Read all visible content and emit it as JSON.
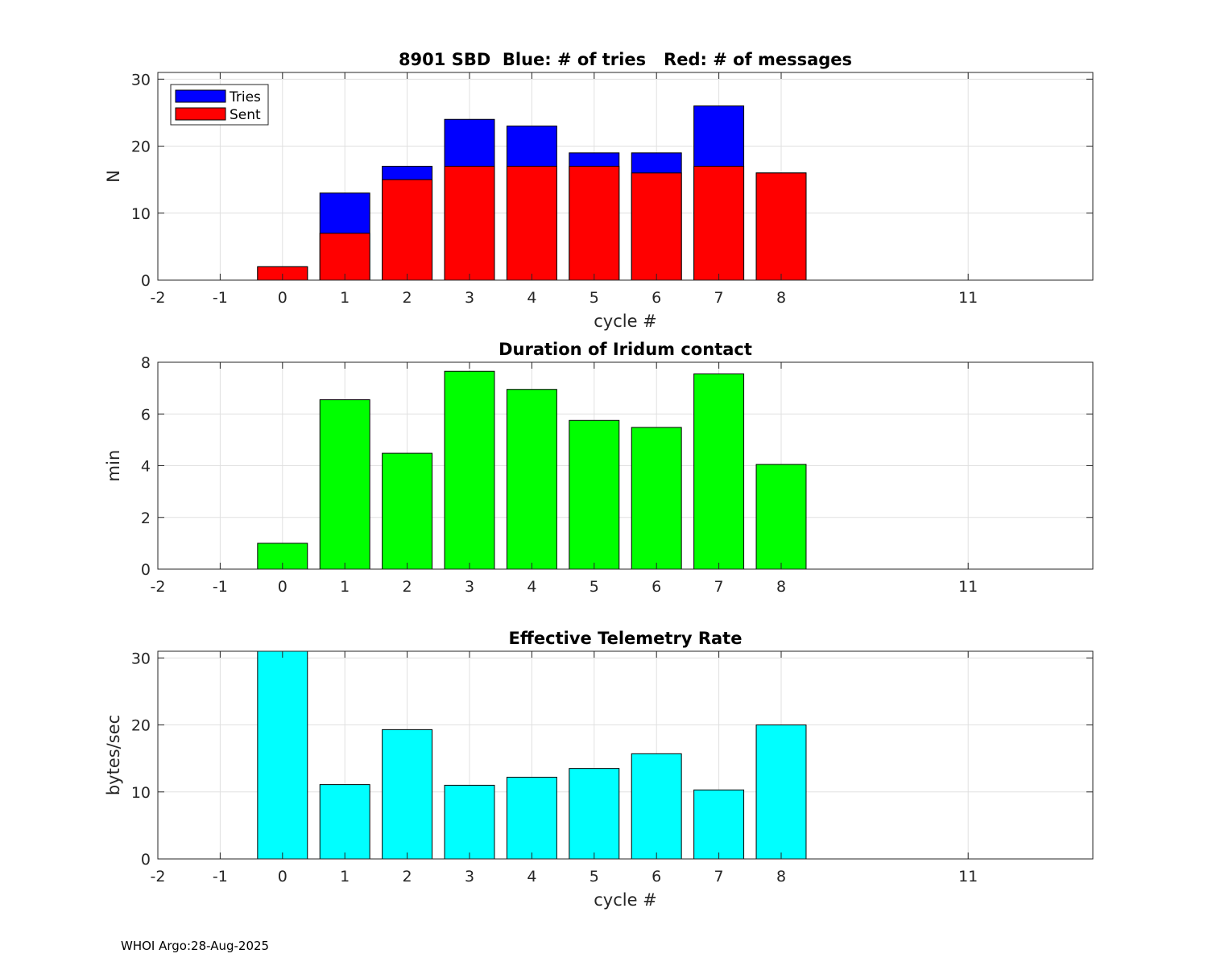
{
  "figure": {
    "footer": "WHOI Argo:28-Aug-2025",
    "colors": {
      "tries": "#0000ff",
      "sent": "#ff0000",
      "duration": "#00ff00",
      "rate": "#00ffff",
      "grid": "#e0e0e0",
      "axis": "#262626"
    }
  },
  "chart_data": [
    {
      "type": "bar",
      "title": "8901 SBD  Blue: # of tries   Red: # of messages",
      "xlabel": "cycle #",
      "ylabel": "N",
      "xlim": [
        -2,
        13
      ],
      "ylim": [
        0,
        31
      ],
      "xticks": [
        -2,
        -1,
        0,
        1,
        2,
        3,
        4,
        5,
        6,
        7,
        8,
        11
      ],
      "yticks": [
        0,
        10,
        20,
        30
      ],
      "grid": true,
      "legend": {
        "position": "top-left",
        "entries": [
          "Tries",
          "Sent"
        ]
      },
      "categories": [
        0,
        1,
        2,
        3,
        4,
        5,
        6,
        7,
        8
      ],
      "series": [
        {
          "name": "Tries",
          "values": [
            2,
            13,
            17,
            24,
            23,
            19,
            19,
            26,
            16
          ]
        },
        {
          "name": "Sent",
          "values": [
            2,
            7,
            15,
            17,
            17,
            17,
            16,
            17,
            16
          ]
        }
      ]
    },
    {
      "type": "bar",
      "title": "Duration of Iridum contact",
      "xlabel": "",
      "ylabel": "min",
      "xlim": [
        -2,
        13
      ],
      "ylim": [
        0,
        8
      ],
      "xticks": [
        -2,
        -1,
        0,
        1,
        2,
        3,
        4,
        5,
        6,
        7,
        8,
        11
      ],
      "yticks": [
        0,
        2,
        4,
        6,
        8
      ],
      "grid": true,
      "categories": [
        0,
        1,
        2,
        3,
        4,
        5,
        6,
        7,
        8
      ],
      "series": [
        {
          "name": "Duration",
          "values": [
            1.0,
            6.55,
            4.48,
            7.65,
            6.95,
            5.75,
            5.48,
            7.55,
            4.05
          ]
        }
      ]
    },
    {
      "type": "bar",
      "title": "Effective Telemetry Rate",
      "xlabel": "cycle #",
      "ylabel": "bytes/sec",
      "xlim": [
        -2,
        13
      ],
      "ylim": [
        0,
        31
      ],
      "xticks": [
        -2,
        -1,
        0,
        1,
        2,
        3,
        4,
        5,
        6,
        7,
        8,
        11
      ],
      "yticks": [
        0,
        10,
        20,
        30
      ],
      "grid": true,
      "categories": [
        0,
        1,
        2,
        3,
        4,
        5,
        6,
        7,
        8
      ],
      "series": [
        {
          "name": "Rate",
          "values": [
            31,
            11.1,
            19.3,
            11.0,
            12.2,
            13.5,
            15.7,
            10.3,
            20.0
          ]
        }
      ]
    }
  ]
}
